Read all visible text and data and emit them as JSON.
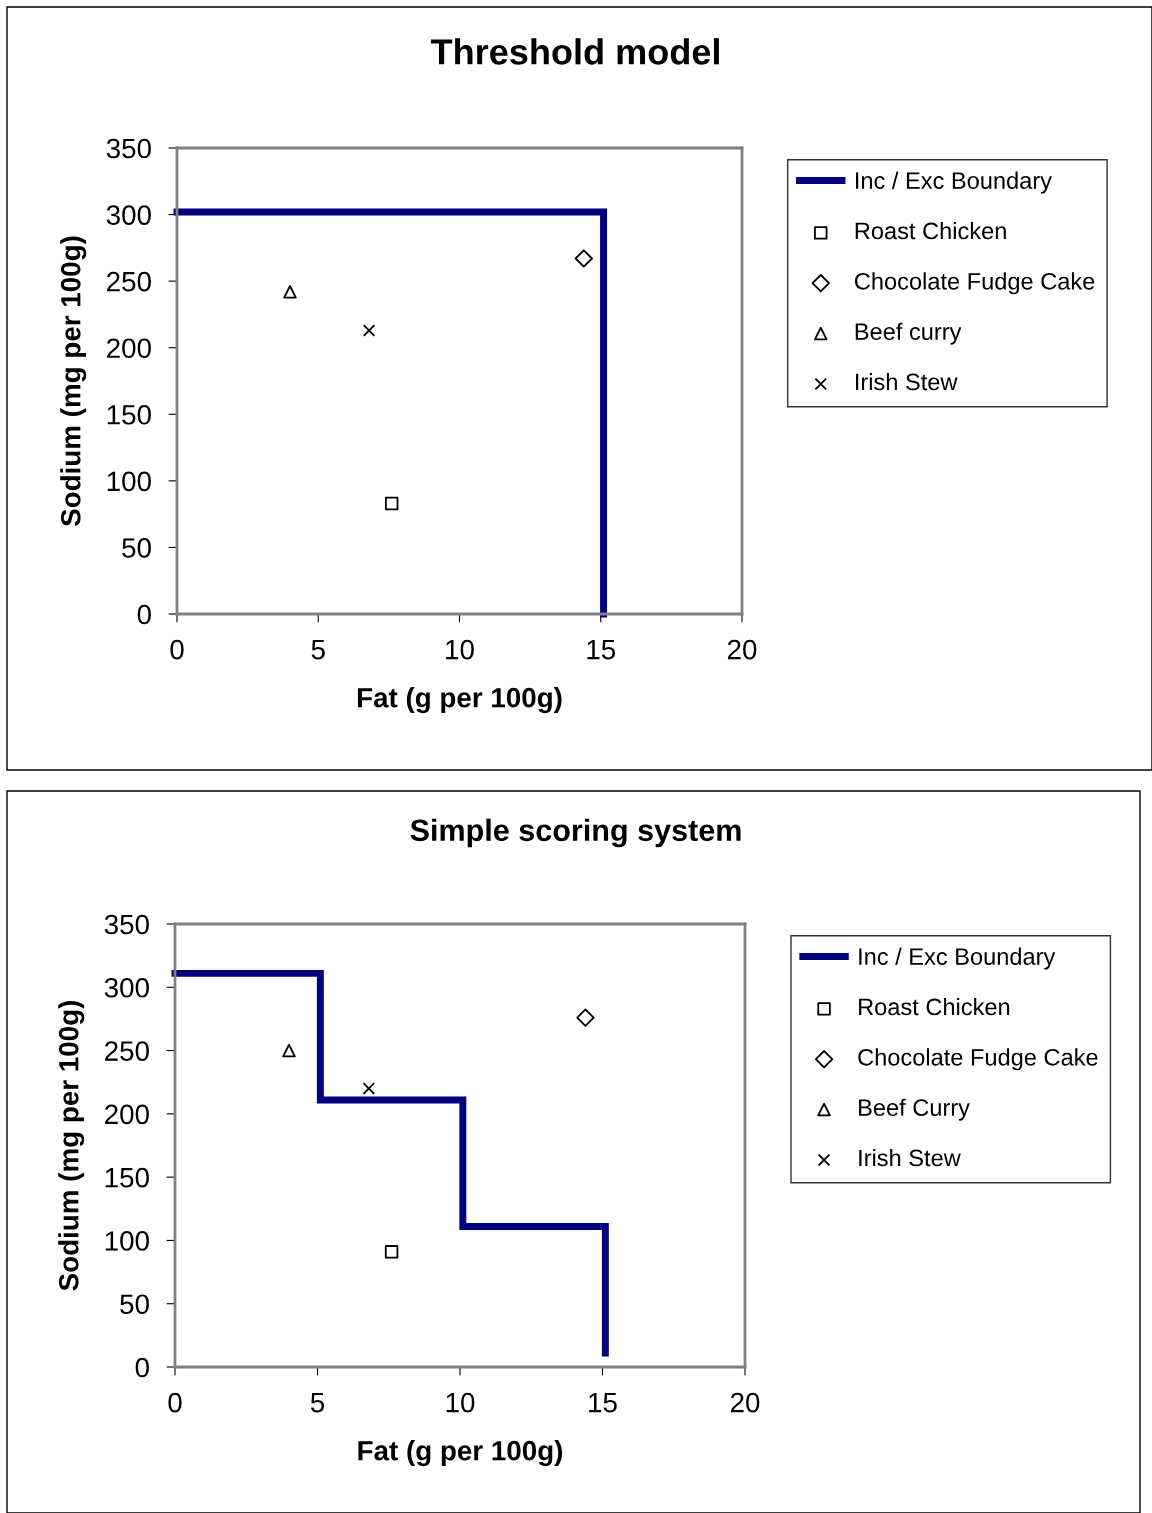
{
  "chart_data": [
    {
      "type": "scatter",
      "title": "Threshold model",
      "xlabel": "Fat (g per 100g)",
      "ylabel": "Sodium (mg per 100g)",
      "xlim": [
        0,
        20
      ],
      "ylim": [
        0,
        350
      ],
      "xticks": [
        0,
        5,
        10,
        15,
        20
      ],
      "yticks": [
        0,
        50,
        100,
        150,
        200,
        250,
        300,
        350
      ],
      "grid": false,
      "legend": "right",
      "series": [
        {
          "name": "Inc / Exc Boundary",
          "type": "line",
          "color": "#000080",
          "marker": "none",
          "line_style": "solid",
          "x": [
            0,
            15.1,
            15.1
          ],
          "values": [
            302,
            302,
            0
          ]
        },
        {
          "name": "Roast Chicken",
          "color": "#000000",
          "marker": "square",
          "x": [
            7.6
          ],
          "values": [
            83
          ]
        },
        {
          "name": "Chocolate Fudge Cake",
          "color": "#000000",
          "marker": "diamond",
          "x": [
            14.4
          ],
          "values": [
            267
          ]
        },
        {
          "name": "Beef curry",
          "color": "#000000",
          "marker": "triangle",
          "x": [
            4.0
          ],
          "values": [
            242
          ]
        },
        {
          "name": "Irish Stew",
          "color": "#000000",
          "marker": "cross",
          "x": [
            6.8
          ],
          "values": [
            213
          ]
        }
      ]
    },
    {
      "type": "scatter",
      "title": "Simple scoring system",
      "xlabel": "Fat (g per 100g)",
      "ylabel": "Sodium (mg per 100g)",
      "xlim": [
        0,
        20
      ],
      "ylim": [
        0,
        350
      ],
      "xticks": [
        0,
        5,
        10,
        15,
        20
      ],
      "yticks": [
        0,
        50,
        100,
        150,
        200,
        250,
        300,
        350
      ],
      "grid": false,
      "legend": "right",
      "series": [
        {
          "name": "Inc / Exc Boundary",
          "type": "line",
          "color": "#000080",
          "marker": "none",
          "line_style": "solid",
          "x": [
            0,
            5.1,
            5.1,
            10.1,
            10.1,
            15.1,
            15.1
          ],
          "values": [
            311,
            311,
            211,
            211,
            111,
            111,
            11
          ]
        },
        {
          "name": "Roast Chicken",
          "color": "#000000",
          "marker": "square",
          "x": [
            7.6
          ],
          "values": [
            91
          ]
        },
        {
          "name": "Chocolate Fudge Cake",
          "color": "#000000",
          "marker": "diamond",
          "x": [
            14.4
          ],
          "values": [
            276
          ]
        },
        {
          "name": "Beef Curry",
          "color": "#000000",
          "marker": "triangle",
          "x": [
            4.0
          ],
          "values": [
            250
          ]
        },
        {
          "name": "Irish Stew",
          "color": "#000000",
          "marker": "cross",
          "x": [
            6.8
          ],
          "values": [
            220
          ]
        }
      ]
    }
  ]
}
